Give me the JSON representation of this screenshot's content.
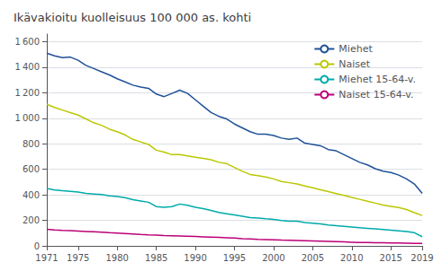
{
  "chart_data": {
    "type": "line",
    "title": "Ikävakioitu kuolleisuus 100 000 as. kohti",
    "x": [
      1971,
      1972,
      1973,
      1974,
      1975,
      1976,
      1977,
      1978,
      1979,
      1980,
      1981,
      1982,
      1983,
      1984,
      1985,
      1986,
      1987,
      1988,
      1989,
      1990,
      1991,
      1992,
      1993,
      1994,
      1995,
      1996,
      1997,
      1998,
      1999,
      2000,
      2001,
      2002,
      2003,
      2004,
      2005,
      2006,
      2007,
      2008,
      2009,
      2010,
      2011,
      2012,
      2013,
      2014,
      2015,
      2016,
      2017,
      2018,
      2019
    ],
    "series": [
      {
        "name": "Miehet",
        "color": "#1f5199",
        "values": [
          1510,
          1490,
          1475,
          1480,
          1455,
          1415,
          1390,
          1365,
          1340,
          1310,
          1285,
          1260,
          1245,
          1235,
          1190,
          1170,
          1195,
          1220,
          1195,
          1145,
          1095,
          1045,
          1015,
          995,
          955,
          925,
          895,
          875,
          875,
          865,
          845,
          835,
          845,
          805,
          795,
          785,
          755,
          745,
          715,
          685,
          655,
          635,
          605,
          585,
          575,
          555,
          525,
          485,
          412
        ]
      },
      {
        "name": "Naiset",
        "color": "#bac800",
        "values": [
          1110,
          1085,
          1065,
          1045,
          1025,
          995,
          965,
          945,
          915,
          895,
          870,
          835,
          815,
          795,
          750,
          735,
          715,
          715,
          705,
          695,
          685,
          675,
          655,
          645,
          615,
          585,
          560,
          550,
          540,
          525,
          505,
          495,
          485,
          470,
          455,
          440,
          425,
          410,
          395,
          380,
          365,
          350,
          335,
          320,
          310,
          300,
          285,
          260,
          238
        ]
      },
      {
        "name": "Miehet 15-64-v.",
        "color": "#00aaaa",
        "values": [
          450,
          438,
          432,
          427,
          422,
          412,
          407,
          402,
          392,
          387,
          378,
          362,
          352,
          342,
          308,
          302,
          308,
          328,
          318,
          302,
          292,
          278,
          262,
          252,
          242,
          232,
          222,
          218,
          212,
          208,
          198,
          193,
          193,
          183,
          178,
          173,
          163,
          158,
          153,
          148,
          143,
          138,
          133,
          128,
          123,
          118,
          113,
          103,
          72
        ]
      },
      {
        "name": "Naiset 15-64-v.",
        "color": "#bb0077",
        "values": [
          130,
          125,
          121,
          119,
          116,
          113,
          110,
          107,
          103,
          100,
          97,
          93,
          89,
          86,
          84,
          81,
          79,
          77,
          75,
          73,
          71,
          69,
          67,
          64,
          61,
          57,
          54,
          51,
          49,
          47,
          45,
          44,
          43,
          41,
          39,
          37,
          35,
          33,
          31,
          29,
          27,
          26,
          25,
          24,
          23,
          22,
          21,
          20,
          19
        ]
      }
    ],
    "xlim": [
      1971,
      2019
    ],
    "xticks": [
      1971,
      1975,
      1980,
      1985,
      1990,
      1995,
      2000,
      2005,
      2010,
      2015,
      2019
    ],
    "ylim": [
      0,
      1660
    ],
    "yticks": [
      0,
      200,
      400,
      600,
      800,
      {
        "value": 1000,
        "label": "1 000"
      },
      {
        "value": 1200,
        "label": "1 200"
      },
      {
        "value": 1400,
        "label": "1 400"
      },
      {
        "value": 1600,
        "label": "1 600"
      }
    ],
    "grid": true,
    "legend": "upper right"
  }
}
